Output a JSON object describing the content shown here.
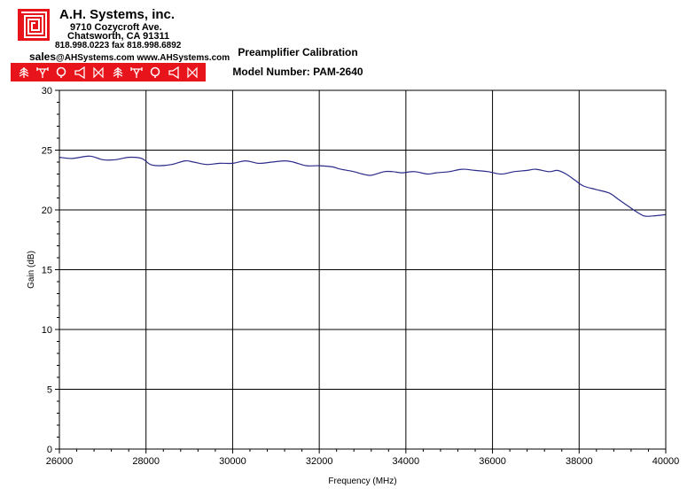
{
  "company": {
    "name": "A.H. Systems, inc.",
    "street": "9710 Cozycroft Ave.",
    "city": "Chatsworth, CA 91311",
    "phone_fax": "818.998.0223 fax 818.998.6892",
    "email_prefix": "sales",
    "email_rest": "@AHSystems.com www.AHSystems.com",
    "logo": "ahs-maze-logo",
    "brand_color": "#e8141c",
    "strip_icons": [
      "tree-antenna-icon",
      "dipole-antenna-icon",
      "loop-antenna-icon",
      "horn-antenna-icon",
      "biconical-antenna-icon",
      "tree-antenna-icon",
      "dipole-antenna-icon",
      "loop-antenna-icon",
      "horn-antenna-icon",
      "biconical-antenna-icon"
    ]
  },
  "chart_data": {
    "type": "line",
    "title": "Preamplifier Calibration",
    "subtitle": "Model Number: PAM-2640",
    "xlabel": "Frequency (MHz)",
    "ylabel": "Gain (dB)",
    "xlim": [
      26000,
      40000
    ],
    "ylim": [
      0,
      30
    ],
    "xticks": [
      "26000",
      "28000",
      "30000",
      "32000",
      "34000",
      "36000",
      "38000",
      "40000"
    ],
    "yticks": [
      "0",
      "5",
      "10",
      "15",
      "20",
      "25",
      "30"
    ],
    "grid": true,
    "line_color": "#2b2b8a",
    "series": [
      {
        "name": "",
        "x": [
          26000,
          26300,
          26700,
          27000,
          27300,
          27600,
          27900,
          28100,
          28300,
          28600,
          28900,
          29100,
          29400,
          29700,
          30000,
          30300,
          30600,
          30900,
          31200,
          31400,
          31700,
          32000,
          32300,
          32500,
          32800,
          33000,
          33200,
          33500,
          33700,
          33900,
          34200,
          34500,
          34700,
          35000,
          35300,
          35600,
          35900,
          36200,
          36500,
          36800,
          37000,
          37300,
          37500,
          37700,
          37900,
          38100,
          38400,
          38700,
          38900,
          39100,
          39300,
          39500,
          39700,
          40000
        ],
        "y": [
          24.4,
          24.3,
          24.5,
          24.2,
          24.2,
          24.4,
          24.3,
          23.8,
          23.7,
          23.8,
          24.1,
          24.0,
          23.8,
          23.9,
          23.9,
          24.1,
          23.9,
          24.0,
          24.1,
          24.0,
          23.7,
          23.7,
          23.6,
          23.4,
          23.2,
          23.0,
          22.9,
          23.2,
          23.2,
          23.1,
          23.2,
          23.0,
          23.1,
          23.2,
          23.4,
          23.3,
          23.2,
          23.0,
          23.2,
          23.3,
          23.4,
          23.2,
          23.3,
          23.0,
          22.5,
          22.0,
          21.7,
          21.4,
          20.9,
          20.4,
          19.9,
          19.5,
          19.5,
          19.6
        ]
      }
    ]
  }
}
